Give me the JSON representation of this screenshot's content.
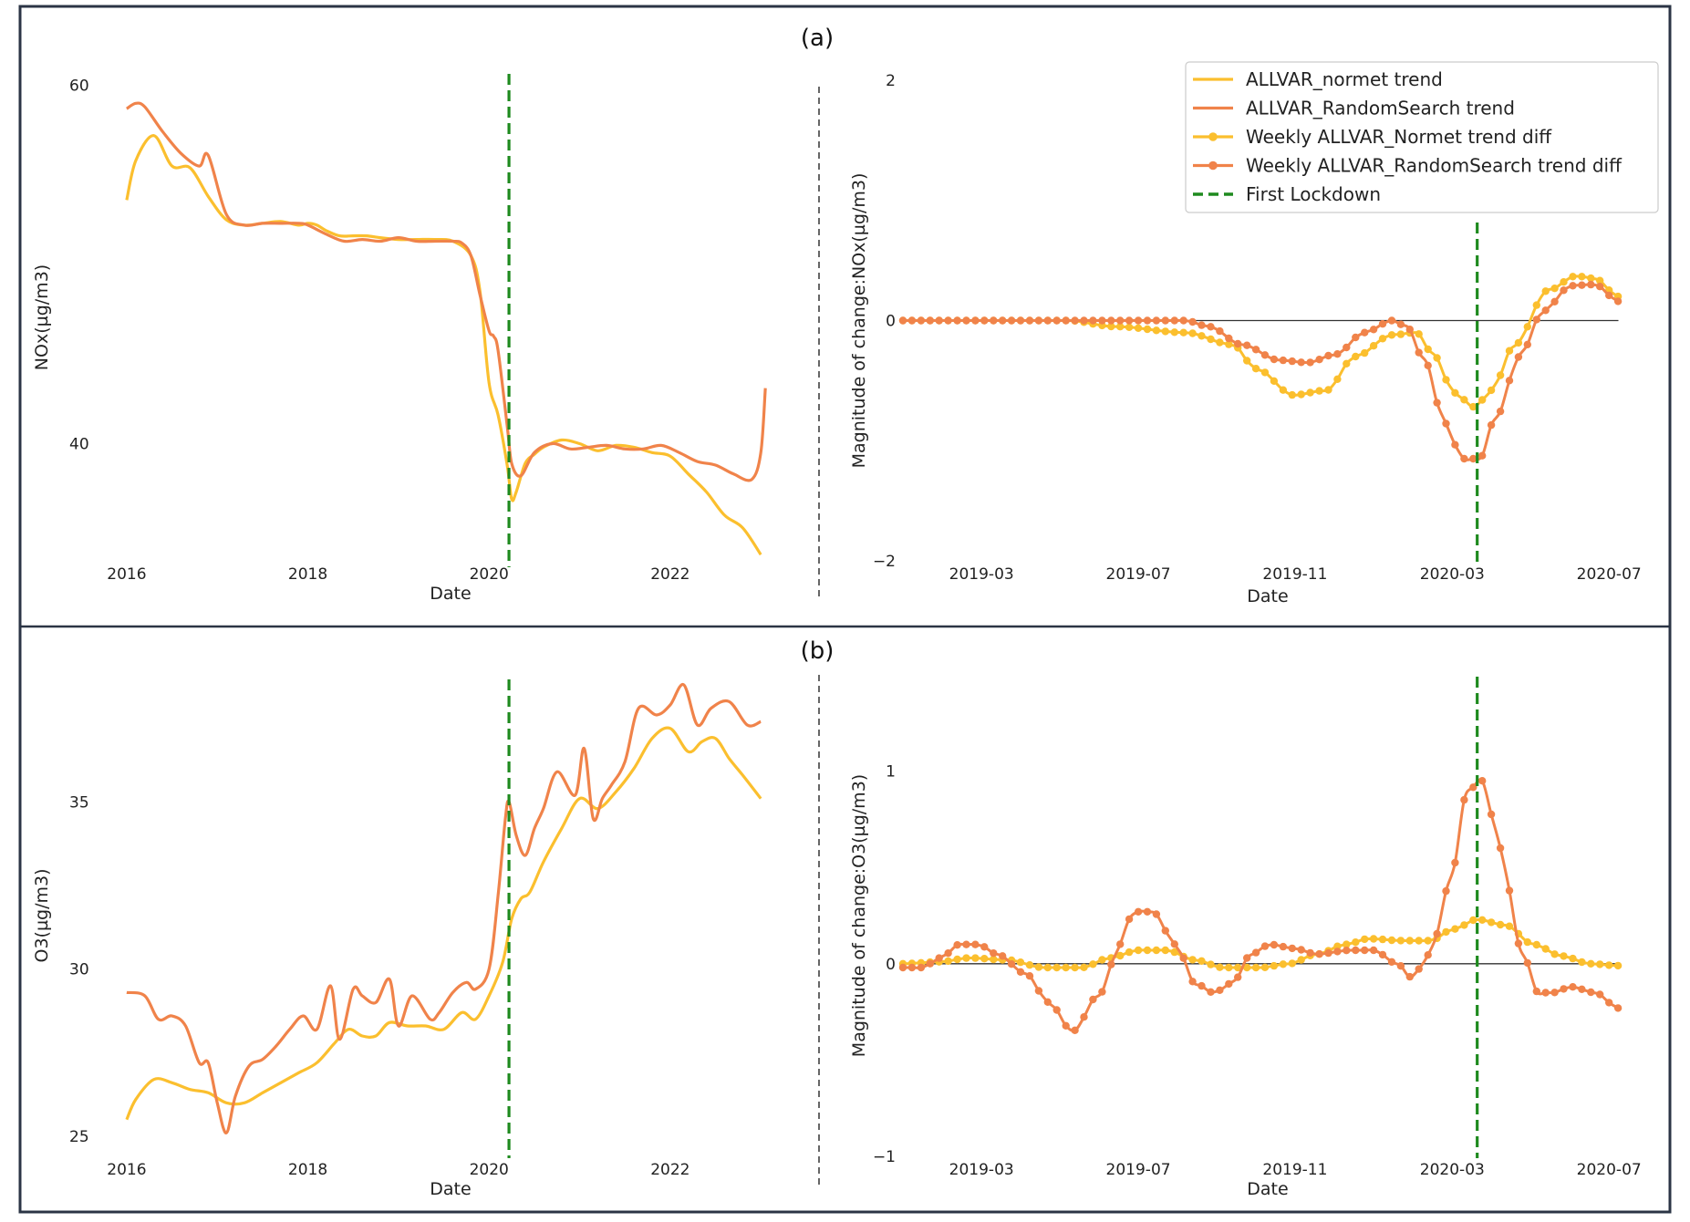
{
  "figure": {
    "panel_a_label": "(a)",
    "panel_b_label": "(b)",
    "colors": {
      "normet": "#fbbf2e",
      "randomsearch": "#f0834a",
      "lockdown": "#1e8a1e",
      "frame": "#2b3445",
      "zero_line": "#333333"
    }
  },
  "chart_data": [
    {
      "id": "a-left",
      "type": "line",
      "xlabel": "Date",
      "ylabel": "NOx(µg/m3)",
      "title": "",
      "x_ticks": [
        2016,
        2018,
        2020,
        2022
      ],
      "x_tick_labels": [
        "2016",
        "2018",
        "2020",
        "2022"
      ],
      "y_ticks": [
        40,
        60
      ],
      "y_tick_labels": [
        "40",
        "60"
      ],
      "xlim": [
        2015.85,
        2023.3
      ],
      "ylim": [
        33.2,
        60.9
      ],
      "lockdown_x": 2020.22,
      "series": [
        {
          "key": "normet",
          "x": [
            2016.0,
            2016.1,
            2016.3,
            2016.5,
            2016.7,
            2016.9,
            2017.1,
            2017.3,
            2017.5,
            2017.7,
            2017.9,
            2018.0,
            2018.1,
            2018.2,
            2018.35,
            2018.5,
            2018.65,
            2018.8,
            2019.0,
            2019.2,
            2019.4,
            2019.6,
            2019.8,
            2019.9,
            2020.0,
            2020.1,
            2020.2,
            2020.25,
            2020.3,
            2020.4,
            2020.5,
            2020.6,
            2020.8,
            2021.0,
            2021.2,
            2021.4,
            2021.6,
            2021.8,
            2022.0,
            2022.2,
            2022.4,
            2022.6,
            2022.8,
            2023.0
          ],
          "y": [
            53.6,
            55.8,
            57.2,
            55.5,
            55.4,
            53.8,
            52.5,
            52.2,
            52.3,
            52.4,
            52.2,
            52.3,
            52.2,
            51.9,
            51.6,
            51.6,
            51.6,
            51.5,
            51.4,
            51.4,
            51.4,
            51.3,
            50.5,
            48.5,
            43.4,
            41.6,
            38.8,
            36.9,
            37.3,
            38.9,
            39.4,
            39.8,
            40.2,
            40.0,
            39.6,
            39.9,
            39.8,
            39.5,
            39.3,
            38.3,
            37.3,
            36.0,
            35.3,
            33.8
          ]
        },
        {
          "key": "randomsearch",
          "x": [
            2016.0,
            2016.1,
            2016.2,
            2016.4,
            2016.6,
            2016.8,
            2016.9,
            2017.1,
            2017.3,
            2017.5,
            2017.7,
            2017.9,
            2018.0,
            2018.2,
            2018.4,
            2018.6,
            2018.8,
            2019.0,
            2019.2,
            2019.4,
            2019.6,
            2019.7,
            2019.8,
            2019.9,
            2020.0,
            2020.05,
            2020.1,
            2020.2,
            2020.25,
            2020.35,
            2020.5,
            2020.7,
            2020.9,
            2021.1,
            2021.3,
            2021.5,
            2021.7,
            2021.9,
            2022.1,
            2022.3,
            2022.5,
            2022.7,
            2022.9,
            2023.0,
            2023.05
          ],
          "y": [
            58.7,
            59.0,
            58.8,
            57.4,
            56.2,
            55.5,
            56.1,
            52.8,
            52.2,
            52.3,
            52.3,
            52.3,
            52.2,
            51.7,
            51.3,
            51.4,
            51.3,
            51.5,
            51.3,
            51.3,
            51.3,
            51.2,
            50.5,
            48.3,
            46.3,
            46.0,
            45.2,
            41.0,
            38.9,
            38.2,
            39.5,
            40.0,
            39.7,
            39.8,
            39.9,
            39.7,
            39.7,
            39.9,
            39.5,
            39.0,
            38.8,
            38.3,
            38.0,
            39.5,
            43.1
          ]
        }
      ]
    },
    {
      "id": "a-right",
      "type": "line",
      "xlabel": "Date",
      "ylabel": "Magnitude  of  change:NOx(µg/m3)",
      "title": "",
      "x_ticks": [
        2019.167,
        2019.5,
        2019.833,
        2020.167,
        2020.5
      ],
      "x_tick_labels": [
        "2019-03",
        "2019-07",
        "2019-11",
        "2020-03",
        "2020-07"
      ],
      "y_ticks": [
        -2,
        0,
        2
      ],
      "y_tick_labels": [
        "−2",
        "0",
        "2"
      ],
      "xlim": [
        2019.0,
        2020.55
      ],
      "ylim": [
        -2,
        2
      ],
      "lockdown_x": 2020.22,
      "legend": {
        "placement": "top-right",
        "entries": [
          {
            "key": "normet_trend",
            "label": "ALLVAR_normet trend",
            "style": "line",
            "color": "#fbbf2e"
          },
          {
            "key": "rs_trend",
            "label": "ALLVAR_RandomSearch trend",
            "style": "line",
            "color": "#f0834a"
          },
          {
            "key": "normet_diff",
            "label": "Weekly ALLVAR_Normet trend diff",
            "style": "marker-line",
            "color": "#fbbf2e"
          },
          {
            "key": "rs_diff",
            "label": "Weekly ALLVAR_RandomSearch trend diff",
            "style": "marker-line",
            "color": "#f0834a"
          },
          {
            "key": "lockdown",
            "label": "First Lockdown",
            "style": "dashed",
            "color": "#1e8a1e"
          }
        ]
      },
      "x_start": 2019.0,
      "x_step": 0.01923,
      "series": [
        {
          "key": "normet_diff",
          "knots": [
            [
              2019.0,
              0
            ],
            [
              2019.35,
              0
            ],
            [
              2019.45,
              -0.05
            ],
            [
              2019.6,
              -0.1
            ],
            [
              2019.7,
              -0.2
            ],
            [
              2019.75,
              -0.4
            ],
            [
              2019.83,
              -0.62
            ],
            [
              2019.9,
              -0.58
            ],
            [
              2019.96,
              -0.3
            ],
            [
              2020.04,
              -0.12
            ],
            [
              2020.09,
              -0.1
            ],
            [
              2020.13,
              -0.3
            ],
            [
              2020.17,
              -0.6
            ],
            [
              2020.215,
              -0.72
            ],
            [
              2020.25,
              -0.58
            ],
            [
              2020.3,
              -0.2
            ],
            [
              2020.37,
              0.25
            ],
            [
              2020.43,
              0.37
            ],
            [
              2020.47,
              0.35
            ],
            [
              2020.52,
              0.2
            ]
          ]
        },
        {
          "key": "rs_diff",
          "knots": [
            [
              2019.0,
              0
            ],
            [
              2019.6,
              0
            ],
            [
              2019.65,
              -0.05
            ],
            [
              2019.72,
              -0.2
            ],
            [
              2019.8,
              -0.33
            ],
            [
              2019.86,
              -0.35
            ],
            [
              2019.92,
              -0.28
            ],
            [
              2019.98,
              -0.1
            ],
            [
              2020.04,
              0
            ],
            [
              2020.07,
              -0.05
            ],
            [
              2020.11,
              -0.35
            ],
            [
              2020.15,
              -0.85
            ],
            [
              2020.19,
              -1.15
            ],
            [
              2020.225,
              -1.15
            ],
            [
              2020.26,
              -0.8
            ],
            [
              2020.31,
              -0.3
            ],
            [
              2020.36,
              0.08
            ],
            [
              2020.42,
              0.29
            ],
            [
              2020.47,
              0.3
            ],
            [
              2020.52,
              0.16
            ]
          ]
        }
      ]
    },
    {
      "id": "b-left",
      "type": "line",
      "xlabel": "Date",
      "ylabel": "O3(µg/m3)",
      "title": "",
      "x_ticks": [
        2016,
        2018,
        2020,
        2022
      ],
      "x_tick_labels": [
        "2016",
        "2018",
        "2020",
        "2022"
      ],
      "y_ticks": [
        25,
        30,
        35
      ],
      "y_tick_labels": [
        "25",
        "30",
        "35"
      ],
      "xlim": [
        2015.85,
        2023.3
      ],
      "ylim": [
        24.4,
        38.8
      ],
      "lockdown_x": 2020.22,
      "series": [
        {
          "key": "normet",
          "x": [
            2016.0,
            2016.1,
            2016.3,
            2016.5,
            2016.7,
            2016.9,
            2017.1,
            2017.3,
            2017.5,
            2017.7,
            2017.9,
            2018.1,
            2018.3,
            2018.45,
            2018.6,
            2018.75,
            2018.9,
            2019.1,
            2019.3,
            2019.5,
            2019.7,
            2019.85,
            2020.0,
            2020.15,
            2020.25,
            2020.35,
            2020.45,
            2020.6,
            2020.8,
            2021.0,
            2021.2,
            2021.4,
            2021.6,
            2021.8,
            2022.0,
            2022.2,
            2022.35,
            2022.5,
            2022.65,
            2022.8,
            2023.0
          ],
          "y": [
            25.5,
            26.1,
            26.7,
            26.6,
            26.4,
            26.3,
            26.0,
            26.0,
            26.3,
            26.6,
            26.9,
            27.2,
            27.8,
            28.2,
            28.0,
            28.0,
            28.4,
            28.3,
            28.3,
            28.2,
            28.7,
            28.5,
            29.2,
            30.2,
            31.5,
            32.1,
            32.3,
            33.2,
            34.2,
            35.1,
            34.8,
            35.3,
            36.0,
            36.9,
            37.2,
            36.5,
            36.8,
            36.9,
            36.3,
            35.8,
            35.1
          ]
        },
        {
          "key": "randomsearch",
          "x": [
            2016.0,
            2016.2,
            2016.35,
            2016.5,
            2016.65,
            2016.8,
            2016.9,
            2017.0,
            2017.1,
            2017.2,
            2017.35,
            2017.5,
            2017.65,
            2017.8,
            2017.95,
            2018.1,
            2018.25,
            2018.35,
            2018.5,
            2018.6,
            2018.75,
            2018.9,
            2019.0,
            2019.15,
            2019.35,
            2019.45,
            2019.6,
            2019.75,
            2019.85,
            2020.0,
            2020.1,
            2020.18,
            2020.22,
            2020.3,
            2020.4,
            2020.5,
            2020.6,
            2020.75,
            2020.95,
            2021.05,
            2021.15,
            2021.25,
            2021.35,
            2021.5,
            2021.65,
            2021.85,
            2022.0,
            2022.15,
            2022.3,
            2022.45,
            2022.65,
            2022.85,
            2023.0
          ],
          "y": [
            29.3,
            29.2,
            28.5,
            28.6,
            28.3,
            27.2,
            27.2,
            26.0,
            25.1,
            26.2,
            27.1,
            27.3,
            27.7,
            28.2,
            28.6,
            28.2,
            29.5,
            27.9,
            29.4,
            29.2,
            29.0,
            29.7,
            28.3,
            29.2,
            28.5,
            28.7,
            29.3,
            29.6,
            29.4,
            30.0,
            32.2,
            34.5,
            35.0,
            34.0,
            33.4,
            34.2,
            34.8,
            35.9,
            35.2,
            36.6,
            34.5,
            35.1,
            35.5,
            36.2,
            37.8,
            37.6,
            37.9,
            38.5,
            37.3,
            37.8,
            38.0,
            37.3,
            37.4
          ]
        }
      ]
    },
    {
      "id": "b-right",
      "type": "line",
      "xlabel": "Date",
      "ylabel": "Magnitude  of  change:O3(µg/m3)",
      "title": "",
      "x_ticks": [
        2019.167,
        2019.5,
        2019.833,
        2020.167,
        2020.5
      ],
      "x_tick_labels": [
        "2019-03",
        "2019-07",
        "2019-11",
        "2020-03",
        "2020-07"
      ],
      "y_ticks": [
        -1,
        0,
        1
      ],
      "y_tick_labels": [
        "−1",
        "0",
        "1"
      ],
      "xlim": [
        2019.0,
        2020.55
      ],
      "ylim": [
        -1,
        1.5
      ],
      "lockdown_x": 2020.22,
      "x_start": 2019.0,
      "x_step": 0.01923,
      "series": [
        {
          "key": "normet_diff",
          "knots": [
            [
              2019.0,
              0
            ],
            [
              2019.08,
              0.01
            ],
            [
              2019.14,
              0.03
            ],
            [
              2019.22,
              0.02
            ],
            [
              2019.3,
              -0.02
            ],
            [
              2019.38,
              -0.02
            ],
            [
              2019.44,
              0.03
            ],
            [
              2019.5,
              0.07
            ],
            [
              2019.56,
              0.07
            ],
            [
              2019.62,
              0.02
            ],
            [
              2019.68,
              -0.02
            ],
            [
              2019.76,
              -0.02
            ],
            [
              2019.82,
              0.0
            ],
            [
              2019.88,
              0.05
            ],
            [
              2019.94,
              0.1
            ],
            [
              2019.99,
              0.13
            ],
            [
              2020.06,
              0.12
            ],
            [
              2020.12,
              0.12
            ],
            [
              2020.17,
              0.18
            ],
            [
              2020.22,
              0.23
            ],
            [
              2020.28,
              0.2
            ],
            [
              2020.34,
              0.1
            ],
            [
              2020.4,
              0.04
            ],
            [
              2020.46,
              0.0
            ],
            [
              2020.52,
              -0.01
            ]
          ]
        },
        {
          "key": "rs_diff",
          "knots": [
            [
              2019.0,
              -0.02
            ],
            [
              2019.04,
              -0.02
            ],
            [
              2019.08,
              0.03
            ],
            [
              2019.12,
              0.1
            ],
            [
              2019.16,
              0.1
            ],
            [
              2019.2,
              0.05
            ],
            [
              2019.26,
              -0.05
            ],
            [
              2019.31,
              -0.2
            ],
            [
              2019.36,
              -0.35
            ],
            [
              2019.42,
              -0.15
            ],
            [
              2019.46,
              0.1
            ],
            [
              2019.49,
              0.27
            ],
            [
              2019.53,
              0.27
            ],
            [
              2019.58,
              0.1
            ],
            [
              2019.62,
              -0.1
            ],
            [
              2019.66,
              -0.15
            ],
            [
              2019.7,
              -0.1
            ],
            [
              2019.74,
              0.05
            ],
            [
              2019.78,
              0.1
            ],
            [
              2019.83,
              0.08
            ],
            [
              2019.88,
              0.05
            ],
            [
              2019.95,
              0.07
            ],
            [
              2020.0,
              0.07
            ],
            [
              2020.05,
              0.0
            ],
            [
              2020.08,
              -0.07
            ],
            [
              2020.12,
              0.05
            ],
            [
              2020.16,
              0.4
            ],
            [
              2020.2,
              0.9
            ],
            [
              2020.23,
              0.95
            ],
            [
              2020.27,
              0.6
            ],
            [
              2020.31,
              0.1
            ],
            [
              2020.35,
              -0.15
            ],
            [
              2020.38,
              -0.15
            ],
            [
              2020.42,
              -0.12
            ],
            [
              2020.47,
              -0.15
            ],
            [
              2020.52,
              -0.23
            ]
          ]
        }
      ]
    }
  ]
}
